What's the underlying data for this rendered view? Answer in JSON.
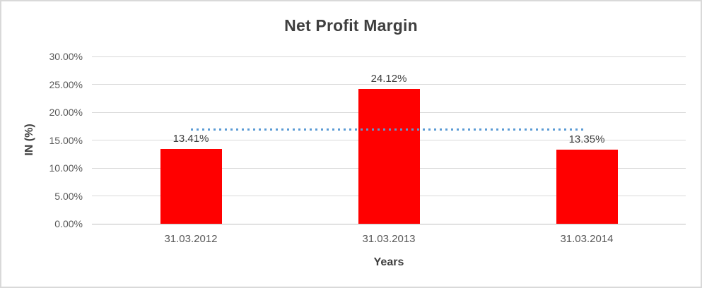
{
  "chart_data": {
    "type": "bar",
    "title": "Net Profit Margin",
    "xlabel": "Years",
    "ylabel": "IN (%)",
    "categories": [
      "31.03.2012",
      "31.03.2013",
      "31.03.2014"
    ],
    "values": [
      13.41,
      24.12,
      13.35
    ],
    "data_labels": [
      "13.41%",
      "24.12%",
      "13.35%"
    ],
    "ylim": [
      0,
      30
    ],
    "ytick_step": 5,
    "ytick_labels": [
      "0.00%",
      "5.00%",
      "10.00%",
      "15.00%",
      "20.00%",
      "25.00%",
      "30.00%"
    ],
    "grid": true,
    "legend_position": "none",
    "bar_color": "#FF0000",
    "trendline": {
      "type": "linear-average",
      "value": 16.96,
      "color": "#5B9BD5",
      "style": "dotted",
      "from_category_index": 0,
      "to_category_index": 2
    },
    "colors": {
      "gridline": "#D9D9D9",
      "axis_line": "#BFBFBF",
      "title_text": "#3F3F3F",
      "tick_text": "#595959",
      "border": "#D9D9D9"
    }
  }
}
